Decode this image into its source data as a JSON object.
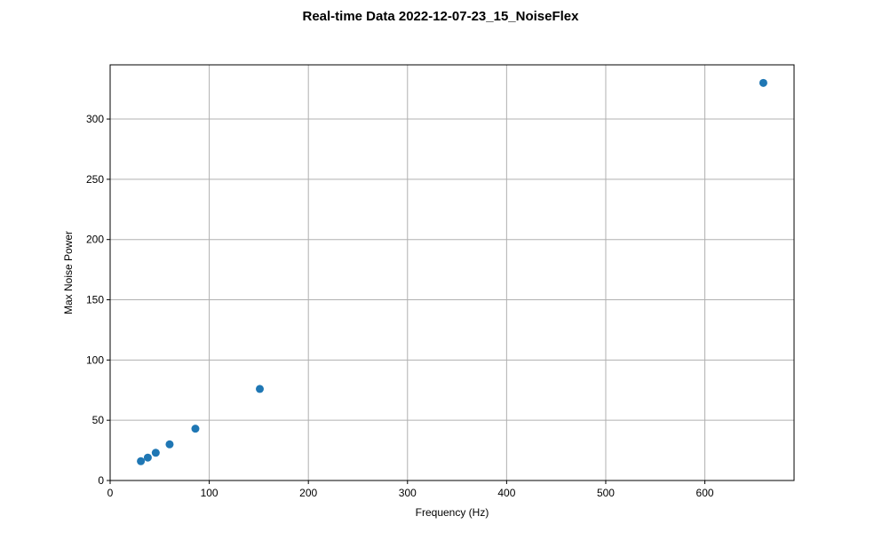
{
  "chart_data": {
    "type": "scatter",
    "title": "Real-time Data 2022-12-07-23_15_NoiseFlex",
    "xlabel": "Frequency (Hz)",
    "ylabel": "Max Noise Power",
    "xlim": [
      0,
      690
    ],
    "ylim": [
      0,
      345
    ],
    "xticks": [
      0,
      100,
      200,
      300,
      400,
      500,
      600
    ],
    "yticks": [
      0,
      50,
      100,
      150,
      200,
      250,
      300
    ],
    "grid": true,
    "color": "#1f77b4",
    "points": [
      {
        "x": 31,
        "y": 16
      },
      {
        "x": 38,
        "y": 19
      },
      {
        "x": 46,
        "y": 23
      },
      {
        "x": 60,
        "y": 30
      },
      {
        "x": 86,
        "y": 43
      },
      {
        "x": 151,
        "y": 76
      },
      {
        "x": 659,
        "y": 330
      }
    ]
  }
}
